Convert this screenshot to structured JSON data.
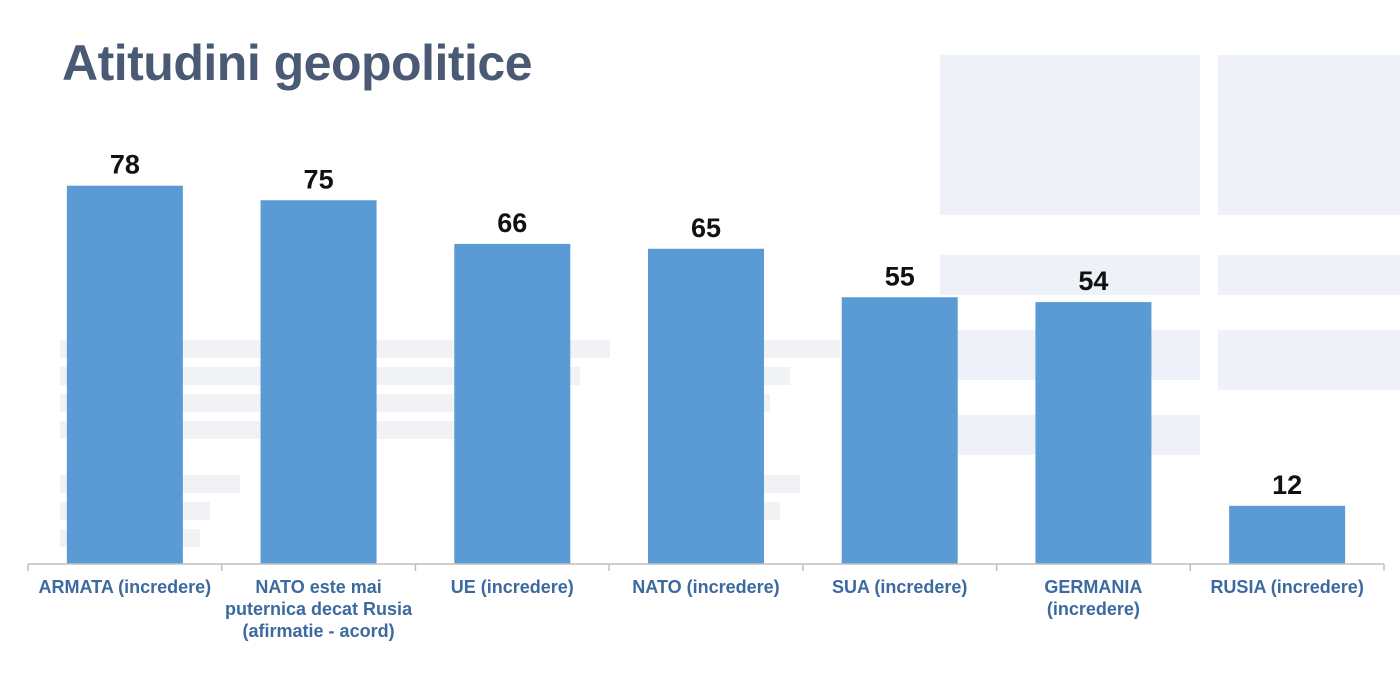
{
  "slide": {
    "title": "Atitudini geopolitice"
  },
  "colors": {
    "bar": "#5b9bd5",
    "title": "#4a5a74",
    "axis_label": "#3c6aa0",
    "value_label": "#111111",
    "axis_line": "#bfbfbf"
  },
  "chart_data": {
    "type": "bar",
    "title": "Atitudini geopolitice",
    "categories": [
      "ARMATA (incredere)",
      "NATO este mai puternica decat Rusia (afirmatie - acord)",
      "UE (incredere)",
      "NATO (incredere)",
      "SUA (incredere)",
      "GERMANIA (incredere)",
      "RUSIA (incredere)"
    ],
    "values": [
      78,
      75,
      66,
      65,
      55,
      54,
      12
    ],
    "xlabel": "",
    "ylabel": "",
    "ylim": [
      0,
      80
    ],
    "data_labels": true,
    "grid": false,
    "legend": "none"
  }
}
